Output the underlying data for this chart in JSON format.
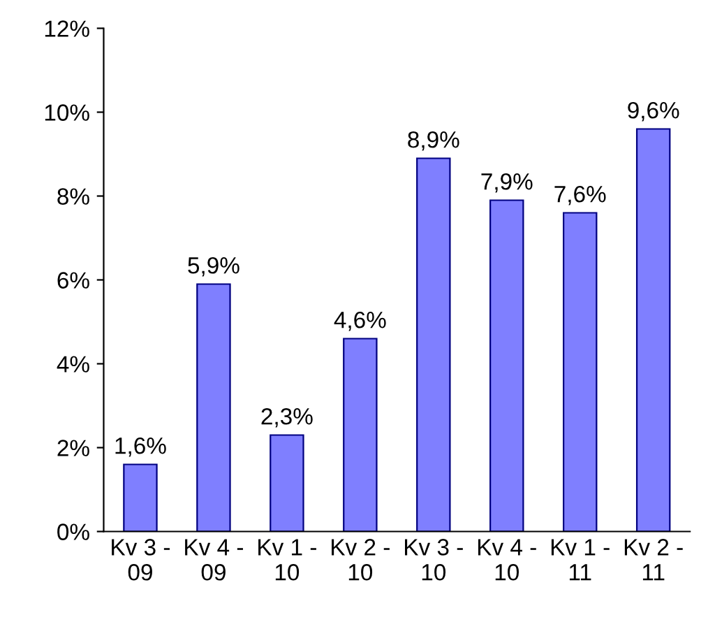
{
  "chart_data": {
    "type": "bar",
    "categories": [
      "Kv 3 -\n09",
      "Kv 4 -\n09",
      "Kv 1 -\n10",
      "Kv 2 -\n10",
      "Kv 3 -\n10",
      "Kv 4 -\n10",
      "Kv 1 -\n11",
      "Kv 2 -\n11"
    ],
    "values": [
      1.6,
      5.9,
      2.3,
      4.6,
      8.9,
      7.9,
      7.6,
      9.6
    ],
    "value_labels": [
      "1,6%",
      "5,9%",
      "2,3%",
      "4,6%",
      "8,9%",
      "7,9%",
      "7,6%",
      "9,6%"
    ],
    "color": "#7f7fff",
    "ylim": [
      0,
      12
    ],
    "yticks": [
      {
        "value": 0,
        "label": "0%"
      },
      {
        "value": 2,
        "label": "2%"
      },
      {
        "value": 4,
        "label": "4%"
      },
      {
        "value": 6,
        "label": "6%"
      },
      {
        "value": 8,
        "label": "8%"
      },
      {
        "value": 10,
        "label": "10%"
      },
      {
        "value": 12,
        "label": "12%"
      }
    ],
    "grid": false,
    "legend": false
  }
}
